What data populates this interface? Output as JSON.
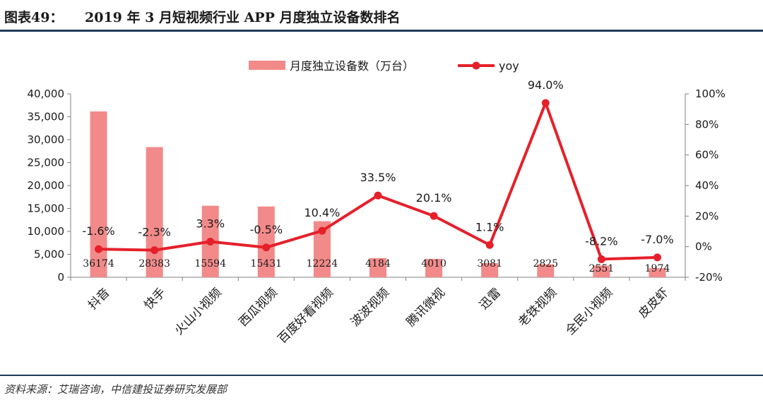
{
  "header": {
    "figure_label": "图表49：",
    "title": "2019 年 3 月短视频行业 APP 月度独立设备数排名"
  },
  "footer": {
    "source": "资料来源：艾瑞咨询，中信建投证券研究发展部"
  },
  "colors": {
    "bar": "#f28a8a",
    "line": "#e5202a",
    "rule": "#1f3a5a"
  },
  "chart_data": {
    "type": "bar",
    "title": "2019 年 3 月短视频行业 APP 月度独立设备数排名",
    "categories": [
      "抖音",
      "快手",
      "火山小视频",
      "西瓜视频",
      "百度好看视频",
      "波波视频",
      "腾讯微视",
      "迅雷",
      "老铁视频",
      "全民小视频",
      "皮皮虾"
    ],
    "series": [
      {
        "name": "月度独立设备数（万台）",
        "type": "bar",
        "axis": "left",
        "values": [
          36174,
          28383,
          15594,
          15431,
          12224,
          4184,
          4010,
          3081,
          2825,
          2551,
          1974
        ],
        "labels": [
          "36174",
          "28383",
          "15594",
          "15431",
          "12224",
          "4184",
          "4010",
          "3081",
          "2825",
          "2551",
          "1974"
        ]
      },
      {
        "name": "yoy",
        "type": "line",
        "axis": "right",
        "values": [
          -1.6,
          -2.3,
          3.3,
          -0.5,
          10.4,
          33.5,
          20.1,
          1.1,
          94.0,
          -8.2,
          -7.0
        ],
        "labels": [
          "-1.6%",
          "-2.3%",
          "3.3%",
          "-0.5%",
          "10.4%",
          "33.5%",
          "20.1%",
          "1.1%",
          "94.0%",
          "-8.2%",
          "-7.0%"
        ]
      }
    ],
    "y_left": {
      "ylim": [
        0,
        40000
      ],
      "ticks": [
        0,
        5000,
        10000,
        15000,
        20000,
        25000,
        30000,
        35000,
        40000
      ],
      "tick_labels": [
        "0",
        "5,000",
        "10,000",
        "15,000",
        "20,000",
        "25,000",
        "30,000",
        "35,000",
        "40,000"
      ]
    },
    "y_right": {
      "ylim": [
        -20,
        100
      ],
      "ticks": [
        -20,
        0,
        20,
        40,
        60,
        80,
        100
      ],
      "tick_labels": [
        "-20%",
        "0%",
        "20%",
        "40%",
        "60%",
        "80%",
        "100%"
      ]
    },
    "xlabel": "",
    "ylabel": "",
    "legend": "top-center",
    "grid": false
  }
}
